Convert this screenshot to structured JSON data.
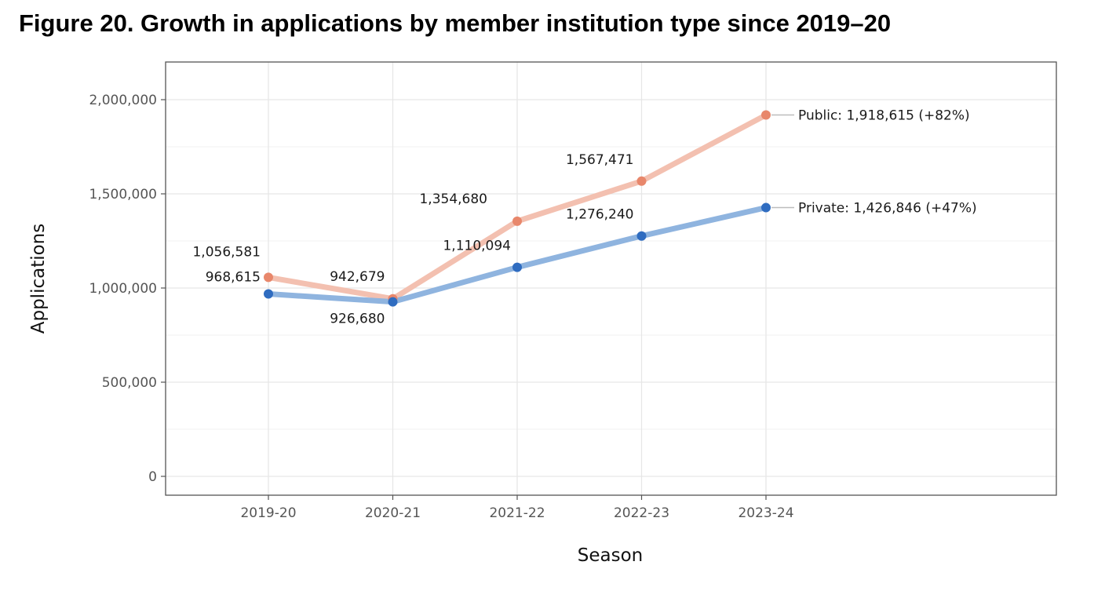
{
  "title": "Figure 20. Growth in applications by member institution type since 2019–20",
  "chart_data": {
    "type": "line",
    "xlabel": "Season",
    "ylabel": "Applications",
    "categories": [
      "2019-20",
      "2020-21",
      "2021-22",
      "2022-23",
      "2023-24"
    ],
    "y_ticks": [
      0,
      500000,
      1000000,
      1500000,
      2000000
    ],
    "y_tick_labels": [
      "0",
      "500,000",
      "1,000,000",
      "1,500,000",
      "2,000,000"
    ],
    "ylim": [
      -100000,
      2200000
    ],
    "grid": true,
    "legend": "none",
    "series": [
      {
        "name": "Public",
        "values": [
          1056581,
          942679,
          1354680,
          1567471,
          1918615
        ],
        "value_labels": [
          "1,056,581",
          "942,679",
          "1,354,680",
          "1,567,471"
        ],
        "end_label": "Public: 1,918,615 (+82%)",
        "point_color": "#e8876b",
        "line_color": "#f3c0b0"
      },
      {
        "name": "Private",
        "values": [
          968615,
          926680,
          1110094,
          1276240,
          1426846
        ],
        "value_labels": [
          "968,615",
          "926,680",
          "1,110,094",
          "1,276,240"
        ],
        "end_label": "Private: 1,426,846 (+47%)",
        "point_color": "#2f6cc0",
        "line_color": "#8fb4df"
      }
    ]
  }
}
